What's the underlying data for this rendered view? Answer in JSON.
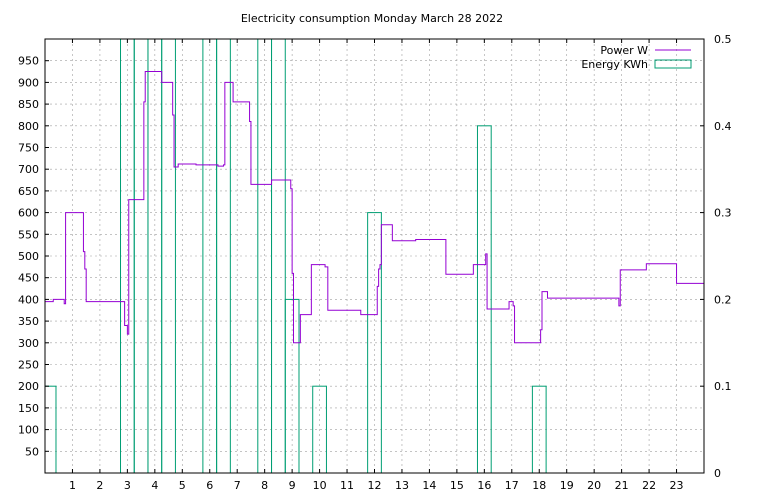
{
  "chart_data": {
    "type": "line",
    "title": "Electricity consumption Monday March 28 2022",
    "xlabel": "",
    "ylabel": "",
    "y2label": "",
    "xlim": [
      0,
      24
    ],
    "ylim": [
      0,
      1000
    ],
    "y2lim": [
      0,
      0.5
    ],
    "xticks": [
      1,
      2,
      3,
      4,
      5,
      6,
      7,
      8,
      9,
      10,
      11,
      12,
      13,
      14,
      15,
      16,
      17,
      18,
      19,
      20,
      21,
      22,
      23
    ],
    "yticks": [
      50,
      100,
      150,
      200,
      250,
      300,
      350,
      400,
      450,
      500,
      550,
      600,
      650,
      700,
      750,
      800,
      850,
      900,
      950
    ],
    "y2ticks": [
      0,
      0.1,
      0.2,
      0.3,
      0.4,
      0.5
    ],
    "y2ticklabels": [
      "0",
      "0.1",
      "0.2",
      "0.3",
      "0.4",
      "0.5"
    ],
    "grid": true,
    "legend_position": "top-right",
    "colors": {
      "power": "#9400d3",
      "energy": "#009e73"
    },
    "series": [
      {
        "name": "Power W",
        "axis": "left",
        "style": "step",
        "points": [
          [
            0,
            395
          ],
          [
            0.3,
            395
          ],
          [
            0.3,
            400
          ],
          [
            0.7,
            400
          ],
          [
            0.7,
            390
          ],
          [
            0.75,
            390
          ],
          [
            0.75,
            600
          ],
          [
            1.4,
            600
          ],
          [
            1.4,
            510
          ],
          [
            1.45,
            510
          ],
          [
            1.45,
            470
          ],
          [
            1.5,
            470
          ],
          [
            1.5,
            395
          ],
          [
            2.9,
            395
          ],
          [
            2.9,
            340
          ],
          [
            3.0,
            340
          ],
          [
            3.0,
            320
          ],
          [
            3.05,
            320
          ],
          [
            3.05,
            630
          ],
          [
            3.6,
            630
          ],
          [
            3.6,
            855
          ],
          [
            3.65,
            855
          ],
          [
            3.65,
            925
          ],
          [
            4.25,
            925
          ],
          [
            4.25,
            900
          ],
          [
            4.65,
            900
          ],
          [
            4.65,
            825
          ],
          [
            4.7,
            825
          ],
          [
            4.7,
            705
          ],
          [
            4.85,
            705
          ],
          [
            4.85,
            712
          ],
          [
            5.5,
            712
          ],
          [
            5.5,
            710
          ],
          [
            6.3,
            710
          ],
          [
            6.3,
            707
          ],
          [
            6.5,
            707
          ],
          [
            6.5,
            710
          ],
          [
            6.55,
            710
          ],
          [
            6.55,
            900
          ],
          [
            6.85,
            900
          ],
          [
            6.85,
            855
          ],
          [
            7.45,
            855
          ],
          [
            7.45,
            810
          ],
          [
            7.5,
            810
          ],
          [
            7.5,
            665
          ],
          [
            8.25,
            665
          ],
          [
            8.25,
            675
          ],
          [
            8.95,
            675
          ],
          [
            8.95,
            655
          ],
          [
            9.0,
            655
          ],
          [
            9.0,
            460
          ],
          [
            9.05,
            460
          ],
          [
            9.05,
            300
          ],
          [
            9.3,
            300
          ],
          [
            9.3,
            365
          ],
          [
            9.7,
            365
          ],
          [
            9.7,
            480
          ],
          [
            10.2,
            480
          ],
          [
            10.2,
            475
          ],
          [
            10.3,
            475
          ],
          [
            10.3,
            375
          ],
          [
            11.5,
            375
          ],
          [
            11.5,
            365
          ],
          [
            12.1,
            365
          ],
          [
            12.1,
            430
          ],
          [
            12.15,
            430
          ],
          [
            12.15,
            470
          ],
          [
            12.2,
            470
          ],
          [
            12.2,
            480
          ],
          [
            12.25,
            480
          ],
          [
            12.25,
            572
          ],
          [
            12.65,
            572
          ],
          [
            12.65,
            535
          ],
          [
            13.5,
            535
          ],
          [
            13.5,
            538
          ],
          [
            14.6,
            538
          ],
          [
            14.6,
            458
          ],
          [
            15.6,
            458
          ],
          [
            15.6,
            480
          ],
          [
            16.05,
            480
          ],
          [
            16.05,
            505
          ],
          [
            16.1,
            505
          ],
          [
            16.1,
            378
          ],
          [
            16.9,
            378
          ],
          [
            16.9,
            395
          ],
          [
            17.05,
            395
          ],
          [
            17.05,
            385
          ],
          [
            17.1,
            385
          ],
          [
            17.1,
            300
          ],
          [
            18.05,
            300
          ],
          [
            18.05,
            330
          ],
          [
            18.1,
            330
          ],
          [
            18.1,
            418
          ],
          [
            18.3,
            418
          ],
          [
            18.3,
            403
          ],
          [
            20.9,
            403
          ],
          [
            20.9,
            385
          ],
          [
            20.95,
            385
          ],
          [
            20.95,
            468
          ],
          [
            21.9,
            468
          ],
          [
            21.9,
            482
          ],
          [
            23.0,
            482
          ],
          [
            23.0,
            437
          ],
          [
            24.0,
            437
          ]
        ]
      },
      {
        "name": "Energy KWh",
        "axis": "right",
        "style": "impulse-bar",
        "bars": [
          [
            0,
            0.4,
            0.1
          ],
          [
            2.75,
            0.5,
            0.5
          ],
          [
            3.25,
            0.5,
            0.5
          ],
          [
            3.75,
            0.5,
            0.5
          ],
          [
            4.25,
            0.5,
            0.5
          ],
          [
            5.75,
            0.5,
            0.5
          ],
          [
            6.25,
            0.5,
            0.5
          ],
          [
            7.75,
            0.5,
            0.5
          ],
          [
            8.25,
            0.5,
            0.5
          ],
          [
            8.75,
            0.5,
            0.2
          ],
          [
            9.75,
            0.5,
            0.1
          ],
          [
            11.75,
            0.5,
            0.3
          ],
          [
            15.75,
            0.5,
            0.4
          ],
          [
            17.75,
            0.5,
            0.1
          ]
        ]
      }
    ]
  }
}
